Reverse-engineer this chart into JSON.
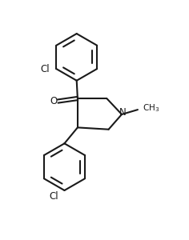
{
  "background_color": "#ffffff",
  "line_color": "#1a1a1a",
  "line_width": 1.5,
  "font_size": 8.5,
  "figsize": [
    2.36,
    3.0
  ],
  "dpi": 100,
  "xlim": [
    0,
    10
  ],
  "ylim": [
    0,
    12.7
  ]
}
